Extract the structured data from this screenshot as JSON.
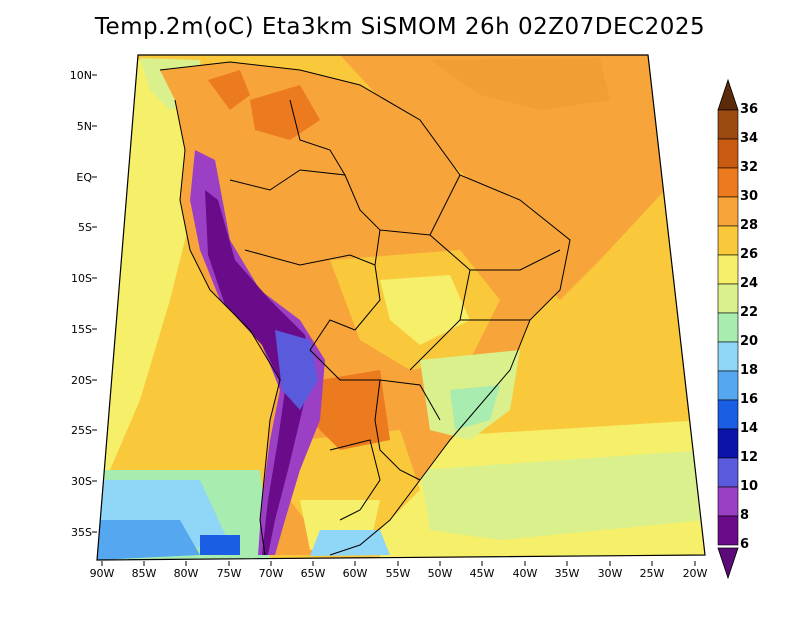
{
  "title": "Temp.2m(oC) Eta3km SiSMOM 26h 02Z07DEC2025",
  "latitude_labels": [
    "10N",
    "5N",
    "EQ",
    "5S",
    "10S",
    "15S",
    "20S",
    "25S",
    "30S",
    "35S"
  ],
  "longitude_labels": [
    "90W",
    "85W",
    "80W",
    "75W",
    "70W",
    "65W",
    "60W",
    "55W",
    "50W",
    "45W",
    "40W",
    "35W",
    "30W",
    "25W",
    "20W"
  ],
  "colorbar": {
    "labels": [
      "36",
      "34",
      "32",
      "30",
      "28",
      "26",
      "24",
      "22",
      "20",
      "18",
      "16",
      "14",
      "12",
      "10",
      "8",
      "6"
    ],
    "colors": [
      "#6b3a12",
      "#9c4a12",
      "#c85a12",
      "#ec7a1e",
      "#f7a53a",
      "#f9c93b",
      "#f5ef6a",
      "#d9f08c",
      "#a8ecb0",
      "#8fd6f7",
      "#55a8f0",
      "#1a5ee6",
      "#0a14a8",
      "#5a5adc",
      "#9b40c4",
      "#6a0c8a"
    ]
  },
  "color_legend": {
    "ocean_north": "#f5c33c",
    "ocean_south": "#f5ef6a",
    "andes": "#6a0c8a",
    "amazon": "#f7a53a"
  }
}
